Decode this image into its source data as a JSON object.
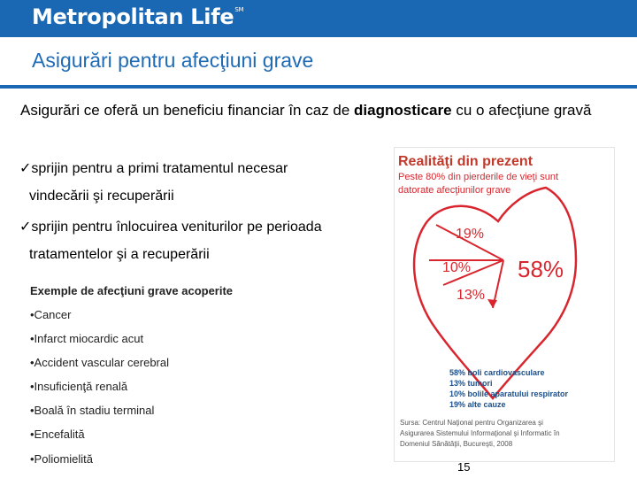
{
  "header": {
    "logo": "Metropolitan Life",
    "logo_mark": "SM"
  },
  "slide": {
    "title": "Asigurări pentru afecţiuni grave",
    "intro_pre": "Asigurări ce oferă un beneficiu financiar în caz de ",
    "intro_bold": "diagnosticare",
    "intro_post": " cu o afecţiune gravă"
  },
  "bullets": [
    {
      "check": "ü",
      "line1": "sprijin pentru a primi tratamentul necesar",
      "line2": "vindecării şi recuperării"
    },
    {
      "check": "ü",
      "line1": "sprijin pentru înlocuirea veniturilor pe perioada",
      "line2": "tratamentelor şi a recuperării"
    }
  ],
  "examples": {
    "heading": "Exemple de afecţiuni grave acoperite",
    "items": [
      "•Cancer",
      "•Infarct miocardic acut",
      "•Accident vascular cerebral",
      "•Insuficienţă renală",
      "•Boală în stadiu terminal",
      "•Encefalită",
      "•Poliomielită"
    ]
  },
  "infographic": {
    "title": "Realităţi din prezent",
    "subtitle_lines": [
      "Peste 80% din pierderile de vieţi sunt",
      "datorate afecţiunilor grave"
    ],
    "percentages": {
      "p19": "19%",
      "p10": "10%",
      "p13": "13%",
      "p58": "58%"
    },
    "legend": [
      "58% boli cardiovasculare",
      "13% tumori",
      "10% bolile aparatului respirator",
      "19% alte cauze"
    ],
    "source_lines": [
      "Sursa: Centrul Naţional pentru Organizarea şi",
      "Asigurarea Sistemului Informaţional şi Informatic în",
      "Domeniul Sănătăţii, Bucureşti, 2008"
    ],
    "colors": {
      "heart": "#d9262e",
      "title": "#c0392b",
      "legend": "#1b4f8a"
    }
  },
  "page_number": "15"
}
